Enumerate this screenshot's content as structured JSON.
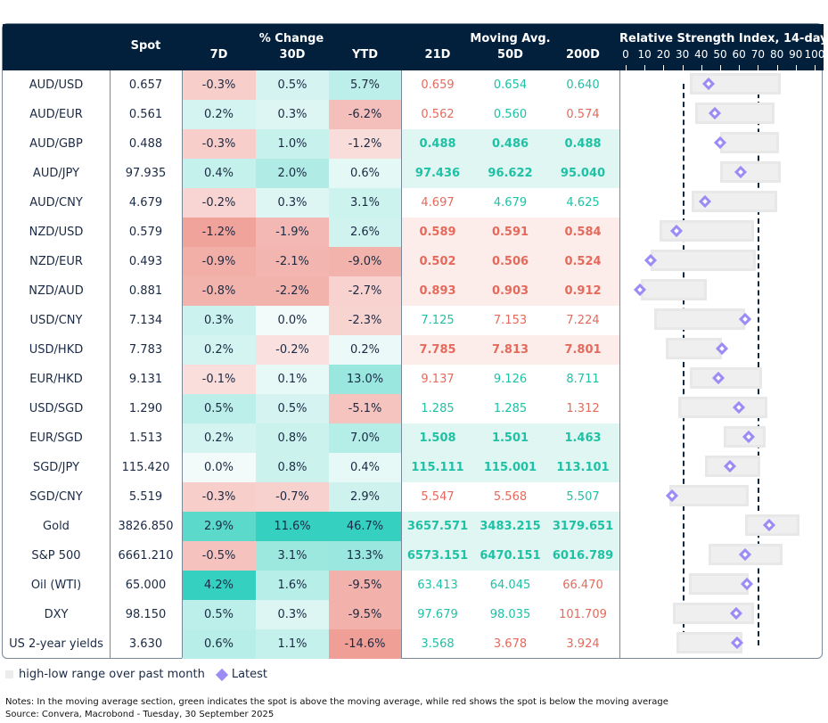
{
  "header": {
    "spot": "Spot",
    "pct_change": "% Change",
    "d7": "7D",
    "d30": "30D",
    "ytd": "YTD",
    "moving_avg": "Moving Avg.",
    "ma21": "21D",
    "ma50": "50D",
    "ma200": "200D",
    "rsi_title": "Relative Strength Index, 14-day"
  },
  "chart_data": {
    "type": "table",
    "title": "Relative Strength Index, 14-day",
    "rsi_axis": {
      "range": [
        0,
        100
      ],
      "ticks": [
        "0",
        "10",
        "20",
        "30",
        "40",
        "50",
        "60",
        "70",
        "80",
        "90",
        "100"
      ],
      "reference_lines": [
        30,
        70
      ]
    },
    "colors": {
      "header_bg": "#02203b",
      "green": "#1fc1a5",
      "red": "#e56a5c",
      "marker": "#9b8cf5",
      "range_bar": "#efefef"
    },
    "rows": [
      {
        "name": "AUD/USD",
        "spot": "0.657",
        "d7": "-0.3%",
        "d30": "0.5%",
        "ytd": "5.7%",
        "ma21": "0.659",
        "ma50": "0.654",
        "ma200": "0.640",
        "rsi_low": 34,
        "rsi_high": 82,
        "rsi": 44
      },
      {
        "name": "AUD/EUR",
        "spot": "0.561",
        "d7": "0.2%",
        "d30": "0.3%",
        "ytd": "-6.2%",
        "ma21": "0.562",
        "ma50": "0.560",
        "ma200": "0.574",
        "rsi_low": 37,
        "rsi_high": 79,
        "rsi": 47
      },
      {
        "name": "AUD/GBP",
        "spot": "0.488",
        "d7": "-0.3%",
        "d30": "1.0%",
        "ytd": "-1.2%",
        "ma21": "0.488",
        "ma50": "0.486",
        "ma200": "0.488",
        "rsi_low": 50,
        "rsi_high": 81,
        "rsi": 50
      },
      {
        "name": "AUD/JPY",
        "spot": "97.935",
        "d7": "0.4%",
        "d30": "2.0%",
        "ytd": "0.6%",
        "ma21": "97.436",
        "ma50": "96.622",
        "ma200": "95.040",
        "rsi_low": 50,
        "rsi_high": 82,
        "rsi": 61
      },
      {
        "name": "AUD/CNY",
        "spot": "4.679",
        "d7": "-0.2%",
        "d30": "0.3%",
        "ytd": "3.1%",
        "ma21": "4.697",
        "ma50": "4.679",
        "ma200": "4.625",
        "rsi_low": 35,
        "rsi_high": 80,
        "rsi": 42
      },
      {
        "name": "NZD/USD",
        "spot": "0.579",
        "d7": "-1.2%",
        "d30": "-1.9%",
        "ytd": "2.6%",
        "ma21": "0.589",
        "ma50": "0.591",
        "ma200": "0.584",
        "rsi_low": 18,
        "rsi_high": 68,
        "rsi": 27
      },
      {
        "name": "NZD/EUR",
        "spot": "0.493",
        "d7": "-0.9%",
        "d30": "-2.1%",
        "ytd": "-9.0%",
        "ma21": "0.502",
        "ma50": "0.506",
        "ma200": "0.524",
        "rsi_low": 13,
        "rsi_high": 69,
        "rsi": 13
      },
      {
        "name": "NZD/AUD",
        "spot": "0.881",
        "d7": "-0.8%",
        "d30": "-2.2%",
        "ytd": "-2.7%",
        "ma21": "0.893",
        "ma50": "0.903",
        "ma200": "0.912",
        "rsi_low": 8,
        "rsi_high": 43,
        "rsi": 7.5
      },
      {
        "name": "USD/CNY",
        "spot": "7.134",
        "d7": "0.3%",
        "d30": "0.0%",
        "ytd": "-2.3%",
        "ma21": "7.125",
        "ma50": "7.153",
        "ma200": "7.224",
        "rsi_low": 15,
        "rsi_high": 63,
        "rsi": 63
      },
      {
        "name": "USD/HKD",
        "spot": "7.783",
        "d7": "0.2%",
        "d30": "-0.2%",
        "ytd": "0.2%",
        "ma21": "7.785",
        "ma50": "7.813",
        "ma200": "7.801",
        "rsi_low": 21,
        "rsi_high": 51,
        "rsi": 51
      },
      {
        "name": "EUR/HKD",
        "spot": "9.131",
        "d7": "-0.1%",
        "d30": "0.1%",
        "ytd": "13.0%",
        "ma21": "9.137",
        "ma50": "9.126",
        "ma200": "8.711",
        "rsi_low": 34,
        "rsi_high": 72,
        "rsi": 49
      },
      {
        "name": "USD/SGD",
        "spot": "1.290",
        "d7": "0.5%",
        "d30": "0.5%",
        "ytd": "-5.1%",
        "ma21": "1.285",
        "ma50": "1.285",
        "ma200": "1.312",
        "rsi_low": 28,
        "rsi_high": 75,
        "rsi": 60
      },
      {
        "name": "EUR/SGD",
        "spot": "1.513",
        "d7": "0.2%",
        "d30": "0.8%",
        "ytd": "7.0%",
        "ma21": "1.508",
        "ma50": "1.501",
        "ma200": "1.463",
        "rsi_low": 52,
        "rsi_high": 74,
        "rsi": 65
      },
      {
        "name": "SGD/JPY",
        "spot": "115.420",
        "d7": "0.0%",
        "d30": "0.8%",
        "ytd": "0.4%",
        "ma21": "115.111",
        "ma50": "115.001",
        "ma200": "113.101",
        "rsi_low": 42,
        "rsi_high": 71,
        "rsi": 55
      },
      {
        "name": "SGD/CNY",
        "spot": "5.519",
        "d7": "-0.3%",
        "d30": "-0.7%",
        "ytd": "2.9%",
        "ma21": "5.547",
        "ma50": "5.568",
        "ma200": "5.507",
        "rsi_low": 23,
        "rsi_high": 65,
        "rsi": 24.5
      },
      {
        "name": "Gold",
        "spot": "3826.850",
        "d7": "2.9%",
        "d30": "11.6%",
        "ytd": "46.7%",
        "ma21": "3657.571",
        "ma50": "3483.215",
        "ma200": "3179.651",
        "rsi_low": 63,
        "rsi_high": 92,
        "rsi": 76
      },
      {
        "name": "S&P 500",
        "spot": "6661.210",
        "d7": "-0.5%",
        "d30": "3.1%",
        "ytd": "13.3%",
        "ma21": "6573.151",
        "ma50": "6470.151",
        "ma200": "6016.789",
        "rsi_low": 44,
        "rsi_high": 83,
        "rsi": 63
      },
      {
        "name": "Oil (WTI)",
        "spot": "65.000",
        "d7": "4.2%",
        "d30": "1.6%",
        "ytd": "-9.5%",
        "ma21": "63.413",
        "ma50": "64.045",
        "ma200": "66.470",
        "rsi_low": 33.5,
        "rsi_high": 65,
        "rsi": 64
      },
      {
        "name": "DXY",
        "spot": "98.150",
        "d7": "0.5%",
        "d30": "0.3%",
        "ytd": "-9.5%",
        "ma21": "97.679",
        "ma50": "98.035",
        "ma200": "101.709",
        "rsi_low": 25,
        "rsi_high": 68,
        "rsi": 58.5
      },
      {
        "name": "US 2-year yields",
        "spot": "3.630",
        "d7": "0.6%",
        "d30": "1.1%",
        "ytd": "-14.6%",
        "ma21": "3.568",
        "ma50": "3.678",
        "ma200": "3.924",
        "rsi_low": 27,
        "rsi_high": 62,
        "rsi": 59
      }
    ]
  },
  "legend": {
    "range": "high-low range over past month",
    "latest": "Latest"
  },
  "notes": {
    "line1": "Notes: In the moving average section, green indicates the spot is above the moving average, while red shows the spot is below the moving average",
    "line2": "Source: Convera, Macrobond - Tuesday, 30 September 2025"
  }
}
